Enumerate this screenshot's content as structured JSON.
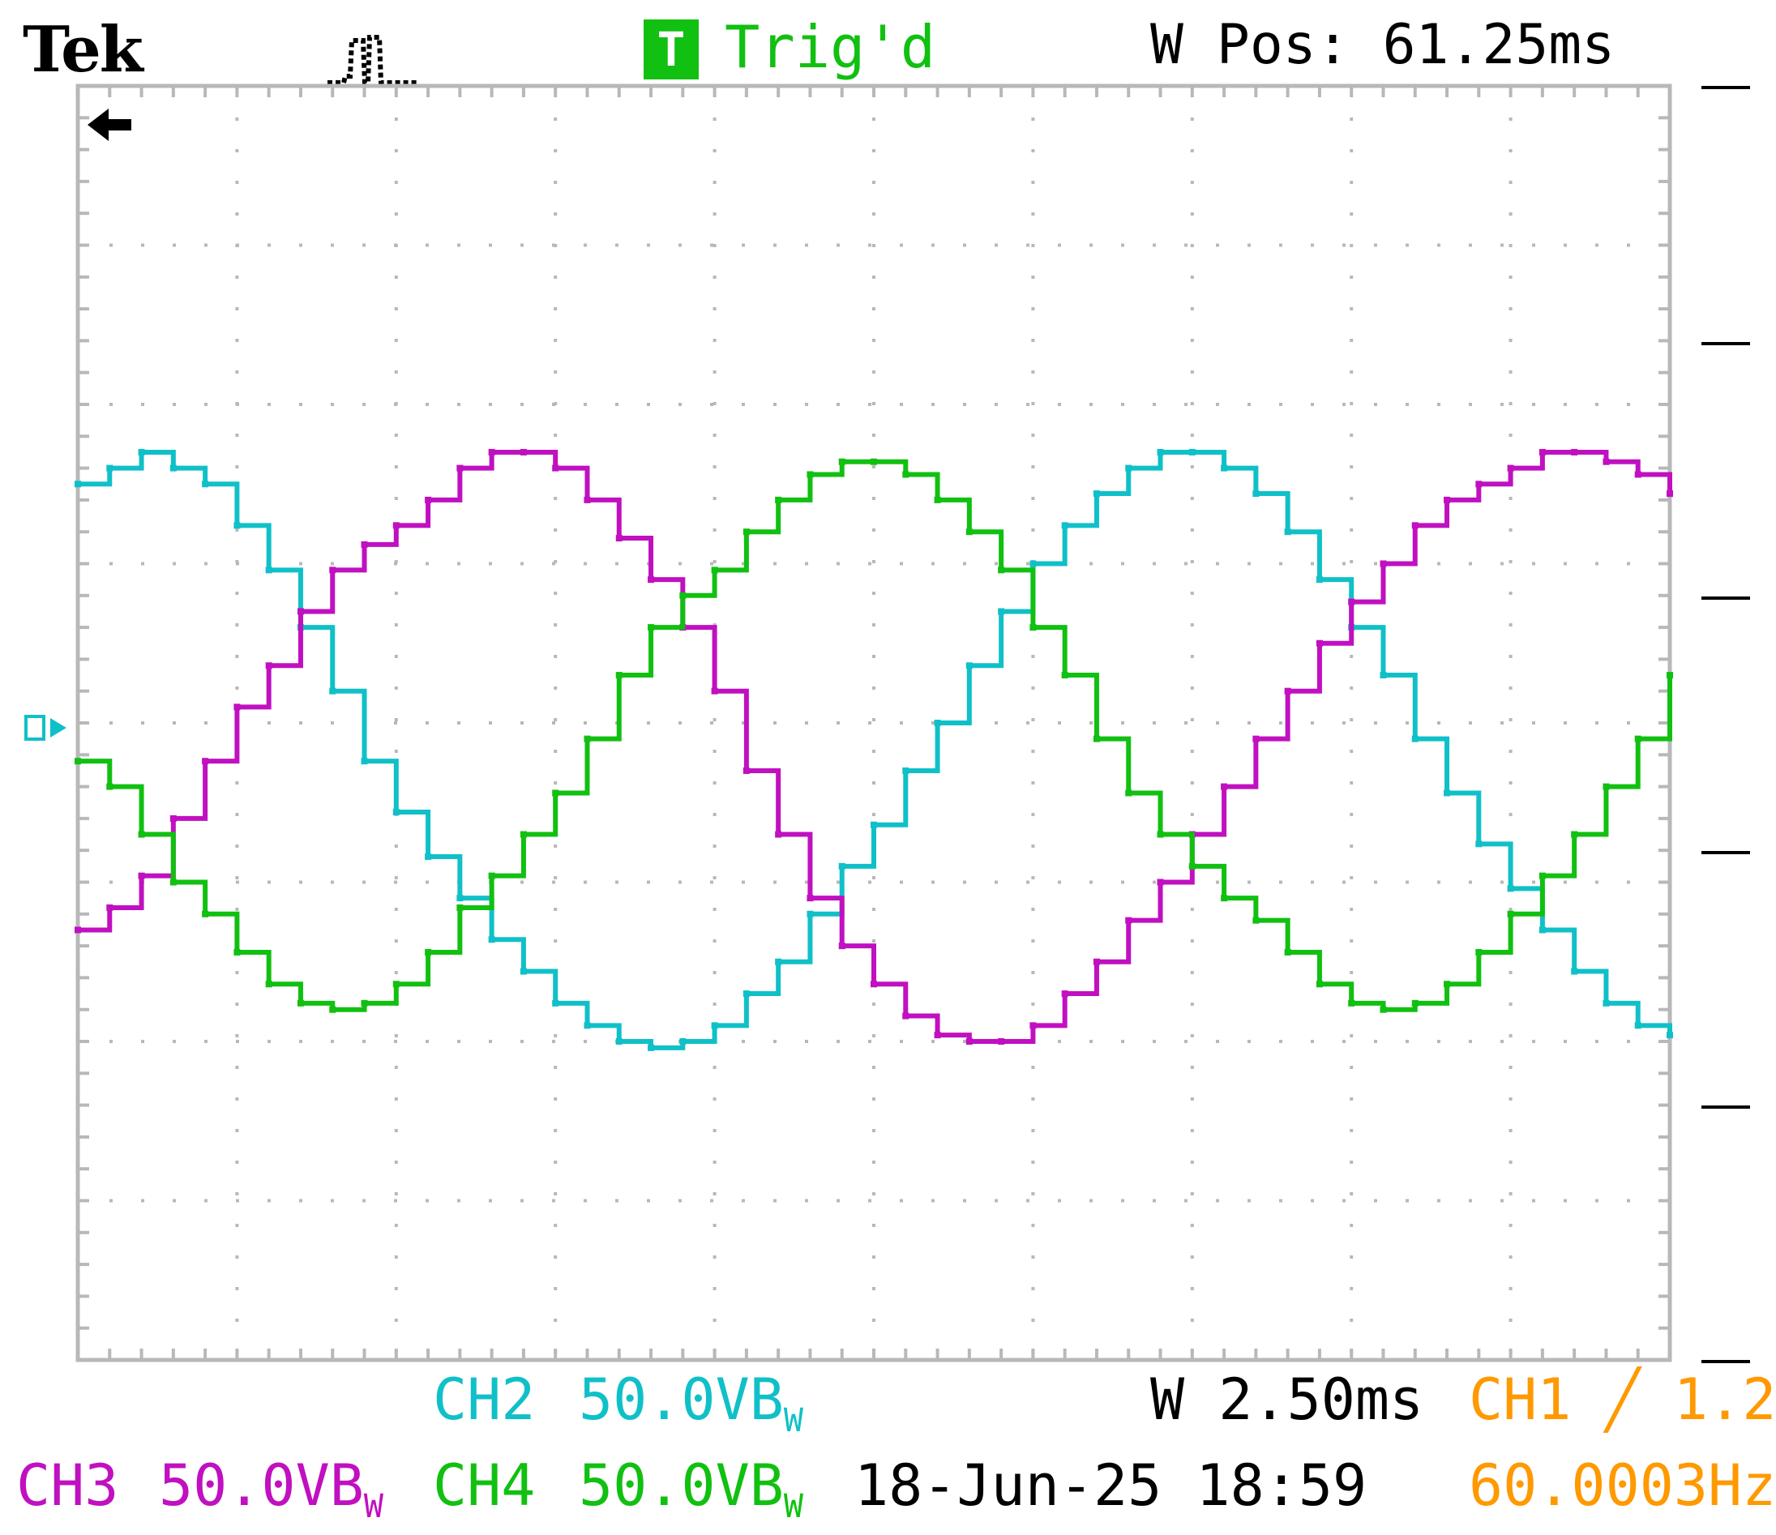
{
  "header": {
    "brand": "Tek",
    "trigger_badge": "T",
    "trigger_status": "Trig'd",
    "window_position": "W Pos: 61.25ms"
  },
  "footer": {
    "ch2_label": "CH2",
    "ch2_scale": "50.0VB",
    "ch2_coupling": "W",
    "timebase": "W 2.50ms",
    "ch1_trigger_label": "CH1",
    "ch1_trigger_slope": "╱",
    "ch1_trigger_level": "1.2",
    "ch3_label": "CH3",
    "ch3_scale": "50.0VB",
    "ch3_coupling": "W",
    "ch4_label": "CH4",
    "ch4_scale": "50.0VB",
    "ch4_coupling": "W",
    "datetime": "18-Jun-25 18:59",
    "frequency": "60.0003Hz"
  },
  "colors": {
    "ch1": "#ff9900",
    "ch2": "#10c0c8",
    "ch3": "#c010c0",
    "ch4": "#11c011",
    "text": "#000000",
    "grid": "#b8b8b8"
  },
  "icons": {
    "trigger_position_marker": "left-arrow-icon",
    "acquisition_mode": "acquisition-pulse-icon",
    "channel_ground_marker": "ground-marker-icon"
  },
  "chart_data": {
    "type": "line",
    "x_unit": "ms",
    "y_unit": "V",
    "xlim": [
      0,
      25
    ],
    "ylim": [
      -200,
      200
    ],
    "grid": true,
    "series": [
      {
        "name": "CH2",
        "color": "#10c0c8",
        "x": [
          0.0,
          0.5,
          1.0,
          1.5,
          2.0,
          2.5,
          3.0,
          3.5,
          4.0,
          4.5,
          5.0,
          5.5,
          6.0,
          6.5,
          7.0,
          7.5,
          8.0,
          8.5,
          9.0,
          9.5,
          10.0,
          10.5,
          11.0,
          11.5,
          12.0,
          12.5,
          13.0,
          13.5,
          14.0,
          14.5,
          15.0,
          15.5,
          16.0,
          16.5,
          17.0,
          17.5,
          18.0,
          18.5,
          19.0,
          19.5,
          20.0,
          20.5,
          21.0,
          21.5,
          22.0,
          22.5,
          23.0,
          23.5,
          24.0,
          24.5,
          25.0
        ],
        "y": [
          75,
          80,
          85,
          80,
          75,
          62,
          48,
          30,
          10,
          -12,
          -28,
          -42,
          -55,
          -68,
          -78,
          -88,
          -95,
          -100,
          -102,
          -100,
          -95,
          -85,
          -75,
          -60,
          -45,
          -32,
          -15,
          0,
          18,
          35,
          50,
          62,
          72,
          80,
          85,
          85,
          80,
          72,
          60,
          45,
          30,
          15,
          -5,
          -22,
          -38,
          -52,
          -65,
          -78,
          -88,
          -95,
          -98
        ]
      },
      {
        "name": "CH3",
        "color": "#c010c0",
        "x": [
          0.0,
          0.5,
          1.0,
          1.5,
          2.0,
          2.5,
          3.0,
          3.5,
          4.0,
          4.5,
          5.0,
          5.5,
          6.0,
          6.5,
          7.0,
          7.5,
          8.0,
          8.5,
          9.0,
          9.5,
          10.0,
          10.5,
          11.0,
          11.5,
          12.0,
          12.5,
          13.0,
          13.5,
          14.0,
          14.5,
          15.0,
          15.5,
          16.0,
          16.5,
          17.0,
          17.5,
          18.0,
          18.5,
          19.0,
          19.5,
          20.0,
          20.5,
          21.0,
          21.5,
          22.0,
          22.5,
          23.0,
          23.5,
          24.0,
          24.5,
          25.0
        ],
        "y": [
          -65,
          -58,
          -48,
          -30,
          -12,
          5,
          18,
          35,
          48,
          56,
          62,
          70,
          80,
          85,
          85,
          80,
          70,
          58,
          45,
          30,
          10,
          -15,
          -35,
          -55,
          -70,
          -82,
          -92,
          -98,
          -100,
          -100,
          -95,
          -85,
          -75,
          -62,
          -50,
          -35,
          -20,
          -5,
          10,
          25,
          38,
          50,
          62,
          70,
          75,
          80,
          85,
          85,
          82,
          78,
          72
        ]
      },
      {
        "name": "CH4",
        "color": "#11c011",
        "x": [
          0.0,
          0.5,
          1.0,
          1.5,
          2.0,
          2.5,
          3.0,
          3.5,
          4.0,
          4.5,
          5.0,
          5.5,
          6.0,
          6.5,
          7.0,
          7.5,
          8.0,
          8.5,
          9.0,
          9.5,
          10.0,
          10.5,
          11.0,
          11.5,
          12.0,
          12.5,
          13.0,
          13.5,
          14.0,
          14.5,
          15.0,
          15.5,
          16.0,
          16.5,
          17.0,
          17.5,
          18.0,
          18.5,
          19.0,
          19.5,
          20.0,
          20.5,
          21.0,
          21.5,
          22.0,
          22.5,
          23.0,
          23.5,
          24.0,
          24.5,
          25.0
        ],
        "y": [
          -12,
          -20,
          -35,
          -50,
          -60,
          -72,
          -82,
          -88,
          -90,
          -88,
          -82,
          -72,
          -58,
          -48,
          -35,
          -22,
          -5,
          15,
          30,
          40,
          48,
          60,
          70,
          78,
          82,
          82,
          78,
          70,
          60,
          48,
          30,
          15,
          -5,
          -22,
          -35,
          -45,
          -55,
          -62,
          -72,
          -82,
          -88,
          -90,
          -88,
          -82,
          -72,
          -60,
          -48,
          -35,
          -20,
          -5,
          15
        ]
      }
    ]
  }
}
